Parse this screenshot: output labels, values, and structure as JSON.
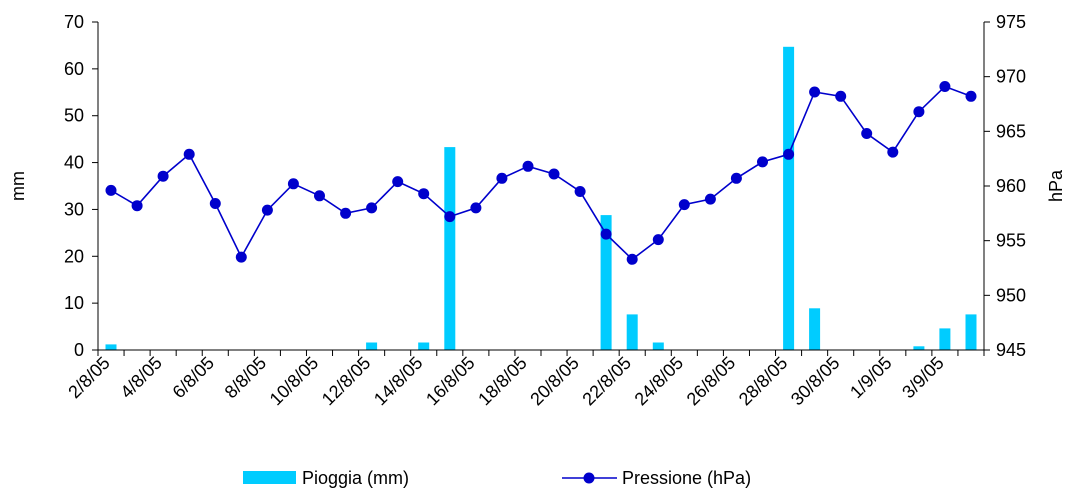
{
  "chart_data": {
    "type": "bar+line",
    "categories": [
      "2/8/05",
      "3/8/05",
      "4/8/05",
      "5/8/05",
      "6/8/05",
      "7/8/05",
      "8/8/05",
      "9/8/05",
      "10/8/05",
      "11/8/05",
      "12/8/05",
      "13/8/05",
      "14/8/05",
      "15/8/05",
      "16/8/05",
      "17/8/05",
      "18/8/05",
      "19/8/05",
      "20/8/05",
      "21/8/05",
      "22/8/05",
      "23/8/05",
      "24/8/05",
      "25/8/05",
      "26/8/05",
      "27/8/05",
      "28/8/05",
      "29/8/05",
      "30/8/05",
      "31/8/05",
      "1/9/05",
      "2/9/05",
      "3/9/05",
      "4/9/05"
    ],
    "x_tick_labels": [
      "2/8/05",
      "4/8/05",
      "6/8/05",
      "8/8/05",
      "10/8/05",
      "12/8/05",
      "14/8/05",
      "16/8/05",
      "18/8/05",
      "20/8/05",
      "22/8/05",
      "24/8/05",
      "26/8/05",
      "28/8/05",
      "30/8/05",
      "1/9/05",
      "3/9/05"
    ],
    "series": [
      {
        "name": "Pioggia (mm)",
        "type": "bar",
        "axis": "left",
        "color": "#00ccff",
        "values": [
          1.2,
          0,
          0,
          0,
          0,
          0,
          0,
          0,
          0,
          0,
          1.6,
          0,
          1.6,
          43.3,
          0,
          0,
          0,
          0,
          0,
          28.8,
          7.6,
          1.6,
          0,
          0,
          0,
          0,
          64.7,
          8.9,
          0,
          0,
          0,
          0.8,
          4.6,
          7.6
        ]
      },
      {
        "name": "Pressione (hPa)",
        "type": "line",
        "axis": "right",
        "color": "#0000cc",
        "values": [
          959.6,
          958.2,
          960.9,
          962.9,
          958.4,
          953.5,
          957.8,
          960.2,
          959.1,
          957.5,
          958,
          960.4,
          959.3,
          957.2,
          958,
          960.7,
          961.8,
          961.1,
          959.5,
          955.6,
          953.3,
          955.1,
          958.3,
          958.8,
          960.7,
          962.2,
          962.9,
          968.6,
          968.2,
          964.8,
          963.1,
          966.8,
          969.1,
          968.2
        ]
      }
    ],
    "ylabel_left": "mm",
    "ylabel_right": "hPa",
    "ylim_left": [
      0,
      70
    ],
    "ylim_right": [
      945,
      975
    ],
    "yticks_left": [
      "0",
      "10",
      "20",
      "30",
      "40",
      "50",
      "60",
      "70"
    ],
    "yticks_right": [
      "945",
      "950",
      "955",
      "960",
      "965",
      "970",
      "975"
    ],
    "legend_position": "bottom",
    "grid": false
  }
}
